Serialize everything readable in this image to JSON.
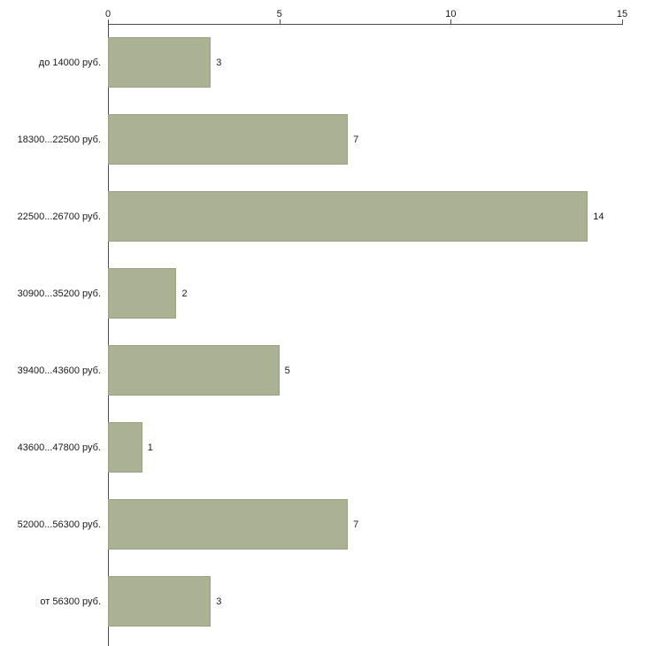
{
  "chart_data": {
    "type": "bar",
    "orientation": "horizontal",
    "title": "",
    "xlabel": "",
    "ylabel": "",
    "categories": [
      "до 14000 руб.",
      "18300...22500 руб.",
      "22500...26700 руб.",
      "30900...35200 руб.",
      "39400...43600 руб.",
      "43600...47800 руб.",
      "52000...56300 руб.",
      "от 56300 руб."
    ],
    "values": [
      3,
      7,
      14,
      2,
      5,
      1,
      7,
      3
    ],
    "value_labels": [
      "3",
      "7",
      "14",
      "2",
      "5",
      "1",
      "7",
      "3"
    ],
    "xlim": [
      0,
      15
    ],
    "x_ticks": [
      "0",
      "5",
      "10",
      "15"
    ],
    "grid": false,
    "legend": "none",
    "colors": {
      "bar_fill": "#abb294",
      "bar_border": "#9aa285",
      "axis": "#4d4d4d",
      "text": "#1a1a1a",
      "background": "#ffffff"
    }
  }
}
